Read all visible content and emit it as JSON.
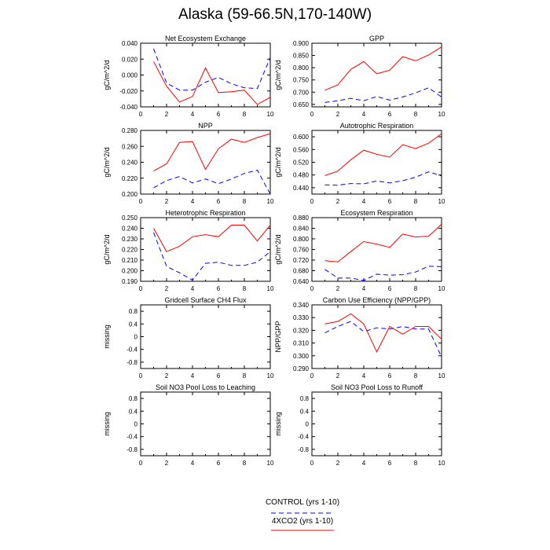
{
  "figure": {
    "title": "Alaska (59-66.5N,170-140W)"
  },
  "legend": {
    "entries": [
      {
        "label": "CONTROL (yrs 1-10)",
        "color": "#0000ff",
        "dash": "dashed"
      },
      {
        "label": "4XCO2 (yrs 1-10)",
        "color": "#ff0000",
        "dash": "solid"
      }
    ]
  },
  "chart_data": [
    {
      "type": "line",
      "title": "Net Ecosystem Exchange",
      "ylabel": "gC/m^2/d",
      "xlim": [
        0,
        10
      ],
      "ylim": [
        -0.04,
        0.04
      ],
      "xticks": [
        "0",
        "2",
        "4",
        "6",
        "8",
        "10"
      ],
      "yticks": [
        "-0.040",
        "-0.020",
        "0.000",
        "0.020",
        "0.040"
      ],
      "x": [
        1,
        2,
        3,
        4,
        5,
        6,
        7,
        8,
        9,
        10
      ],
      "series": [
        {
          "name": "CONTROL (yrs 1-10)",
          "values": [
            0.033,
            -0.01,
            -0.019,
            -0.019,
            -0.009,
            -0.003,
            -0.011,
            -0.016,
            -0.017,
            0.022
          ]
        },
        {
          "name": "4XCO2 (yrs 1-10)",
          "values": [
            0.017,
            -0.014,
            -0.034,
            -0.027,
            0.009,
            -0.022,
            -0.021,
            -0.019,
            -0.037,
            -0.028
          ]
        }
      ]
    },
    {
      "type": "line",
      "title": "GPP",
      "ylabel": "gC/m^2/d",
      "xlim": [
        0,
        10
      ],
      "ylim": [
        0.64,
        0.9
      ],
      "xticks": [
        "0",
        "2",
        "4",
        "6",
        "8",
        "10"
      ],
      "yticks": [
        "0.650",
        "0.700",
        "0.750",
        "0.800",
        "0.850",
        "0.900"
      ],
      "x": [
        1,
        2,
        3,
        4,
        5,
        6,
        7,
        8,
        9,
        10
      ],
      "series": [
        {
          "name": "CONTROL (yrs 1-10)",
          "values": [
            0.658,
            0.665,
            0.675,
            0.665,
            0.682,
            0.668,
            0.68,
            0.697,
            0.718,
            0.68
          ]
        },
        {
          "name": "4XCO2 (yrs 1-10)",
          "values": [
            0.708,
            0.73,
            0.793,
            0.825,
            0.775,
            0.79,
            0.845,
            0.828,
            0.852,
            0.885
          ]
        }
      ]
    },
    {
      "type": "line",
      "title": "NPP",
      "ylabel": "gC/m^2/d",
      "xlim": [
        0,
        10
      ],
      "ylim": [
        0.2,
        0.28
      ],
      "xticks": [
        "0",
        "2",
        "4",
        "6",
        "8",
        "10"
      ],
      "yticks": [
        "0.200",
        "0.220",
        "0.240",
        "0.260",
        "0.280"
      ],
      "x": [
        1,
        2,
        3,
        4,
        5,
        6,
        7,
        8,
        9,
        10
      ],
      "series": [
        {
          "name": "CONTROL (yrs 1-10)",
          "values": [
            0.208,
            0.217,
            0.222,
            0.214,
            0.219,
            0.213,
            0.219,
            0.226,
            0.23,
            0.2
          ]
        },
        {
          "name": "4XCO2 (yrs 1-10)",
          "values": [
            0.229,
            0.238,
            0.265,
            0.266,
            0.231,
            0.257,
            0.269,
            0.265,
            0.271,
            0.276
          ]
        }
      ]
    },
    {
      "type": "line",
      "title": "Autotrophic Respiration",
      "ylabel": "gC/m^2/d",
      "xlim": [
        0,
        10
      ],
      "ylim": [
        0.42,
        0.62
      ],
      "xticks": [
        "0",
        "2",
        "4",
        "6",
        "8",
        "10"
      ],
      "yticks": [
        "0.440",
        "0.480",
        "0.520",
        "0.560",
        "0.600"
      ],
      "x": [
        1,
        2,
        3,
        4,
        5,
        6,
        7,
        8,
        9,
        10
      ],
      "series": [
        {
          "name": "CONTROL (yrs 1-10)",
          "values": [
            0.449,
            0.448,
            0.453,
            0.452,
            0.461,
            0.455,
            0.462,
            0.473,
            0.49,
            0.477
          ]
        },
        {
          "name": "4XCO2 (yrs 1-10)",
          "values": [
            0.478,
            0.492,
            0.528,
            0.558,
            0.545,
            0.536,
            0.575,
            0.563,
            0.58,
            0.61
          ]
        }
      ]
    },
    {
      "type": "line",
      "title": "Heterotrophic Respiration",
      "ylabel": "gC/m^2/d",
      "xlim": [
        0,
        10
      ],
      "ylim": [
        0.19,
        0.25
      ],
      "xticks": [
        "0",
        "2",
        "4",
        "6",
        "8",
        "10"
      ],
      "yticks": [
        "0.190",
        "0.200",
        "0.210",
        "0.220",
        "0.230",
        "0.240",
        "0.250"
      ],
      "x": [
        1,
        2,
        3,
        4,
        5,
        6,
        7,
        8,
        9,
        10
      ],
      "series": [
        {
          "name": "CONTROL (yrs 1-10)",
          "values": [
            0.236,
            0.204,
            0.198,
            0.191,
            0.207,
            0.208,
            0.205,
            0.205,
            0.208,
            0.218
          ]
        },
        {
          "name": "4XCO2 (yrs 1-10)",
          "values": [
            0.24,
            0.218,
            0.223,
            0.232,
            0.234,
            0.232,
            0.243,
            0.243,
            0.228,
            0.243
          ]
        }
      ]
    },
    {
      "type": "line",
      "title": "Ecosystem Respiration",
      "ylabel": "gC/m^2/d",
      "xlim": [
        0,
        10
      ],
      "ylim": [
        0.64,
        0.88
      ],
      "xticks": [
        "0",
        "2",
        "4",
        "6",
        "8",
        "10"
      ],
      "yticks": [
        "0.640",
        "0.680",
        "0.720",
        "0.760",
        "0.800",
        "0.840",
        "0.880"
      ],
      "x": [
        1,
        2,
        3,
        4,
        5,
        6,
        7,
        8,
        9,
        10
      ],
      "series": [
        {
          "name": "CONTROL (yrs 1-10)",
          "values": [
            0.685,
            0.652,
            0.652,
            0.643,
            0.667,
            0.663,
            0.665,
            0.675,
            0.697,
            0.695
          ]
        },
        {
          "name": "4XCO2 (yrs 1-10)",
          "values": [
            0.718,
            0.713,
            0.752,
            0.79,
            0.78,
            0.768,
            0.818,
            0.807,
            0.81,
            0.855
          ]
        }
      ]
    },
    {
      "type": "line",
      "title": "Gridcell Surface CH4 Flux",
      "ylabel": "missing",
      "xlim": [
        0,
        10
      ],
      "ylim": [
        -1,
        1
      ],
      "xticks": [
        "0",
        "2",
        "4",
        "6",
        "8",
        "10"
      ],
      "yticks": [
        "-0.8",
        "-0.4",
        "0",
        "0.4",
        "0.8"
      ],
      "x": [],
      "series": []
    },
    {
      "type": "line",
      "title": "Carbon Use Efficiency (NPP/GPP)",
      "ylabel": "NPP/GPP",
      "xlim": [
        0,
        10
      ],
      "ylim": [
        0.29,
        0.34
      ],
      "xticks": [
        "0",
        "2",
        "4",
        "6",
        "8",
        "10"
      ],
      "yticks": [
        "0.290",
        "0.300",
        "0.310",
        "0.320",
        "0.330",
        "0.340"
      ],
      "x": [
        1,
        2,
        3,
        4,
        5,
        6,
        7,
        8,
        9,
        10
      ],
      "series": [
        {
          "name": "CONTROL (yrs 1-10)",
          "values": [
            0.318,
            0.323,
            0.327,
            0.319,
            0.322,
            0.321,
            0.323,
            0.321,
            0.321,
            0.299
          ]
        },
        {
          "name": "4XCO2 (yrs 1-10)",
          "values": [
            0.325,
            0.327,
            0.333,
            0.325,
            0.303,
            0.323,
            0.317,
            0.323,
            0.323,
            0.313
          ]
        }
      ]
    },
    {
      "type": "line",
      "title": "Soil NO3 Pool Loss to Leaching",
      "ylabel": "missing",
      "xlim": [
        0,
        10
      ],
      "ylim": [
        -1,
        1
      ],
      "xticks": [
        "0",
        "2",
        "4",
        "6",
        "8",
        "10"
      ],
      "yticks": [
        "-0.8",
        "-0.4",
        "0",
        "0.4",
        "0.8"
      ],
      "x": [],
      "series": []
    },
    {
      "type": "line",
      "title": "Soil NO3 Pool Loss to Runoff",
      "ylabel": "missing",
      "xlim": [
        0,
        10
      ],
      "ylim": [
        -1,
        1
      ],
      "xticks": [
        "0",
        "2",
        "4",
        "6",
        "8",
        "10"
      ],
      "yticks": [
        "-0.8",
        "-0.4",
        "0",
        "0.4",
        "0.8"
      ],
      "x": [],
      "series": []
    }
  ]
}
